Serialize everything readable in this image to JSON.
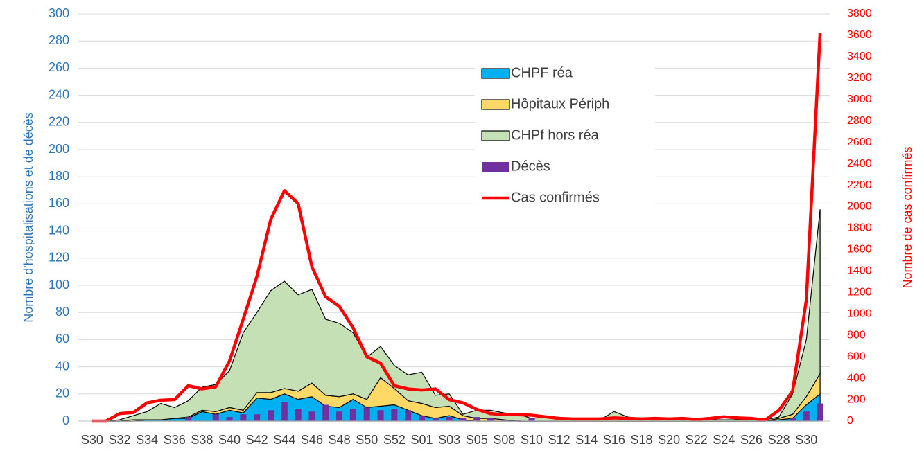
{
  "chart_data": {
    "type": "combo",
    "y_label": "Nombre d'hospitalisations et de décès",
    "y2_label": "Nombre de cas confirmés",
    "categories": [
      "S30",
      null,
      "S32",
      null,
      "S34",
      null,
      "S36",
      null,
      "S38",
      null,
      "S40",
      null,
      "S42",
      null,
      "S44",
      null,
      "S46",
      null,
      "S48",
      null,
      "S50",
      null,
      "S52",
      null,
      "S01",
      null,
      "S03",
      null,
      "S05",
      null,
      "S08",
      null,
      "S10",
      null,
      "S12",
      null,
      "S14",
      null,
      "S16",
      null,
      "S18",
      null,
      "S20",
      null,
      "S22",
      null,
      "S24",
      null,
      "S26",
      null,
      "S28",
      null,
      "S30",
      null
    ],
    "series": [
      {
        "name": "CHPF réa",
        "type": "area",
        "color": "#00b0f0",
        "values": [
          0,
          0,
          0,
          0,
          1,
          1,
          2,
          2,
          7,
          5,
          8,
          6,
          17,
          16,
          20,
          16,
          18,
          11,
          10,
          16,
          10,
          11,
          12,
          8,
          4,
          2,
          4,
          1,
          0,
          0,
          0,
          0,
          0,
          0,
          0,
          0,
          0,
          0,
          0,
          0,
          0,
          0,
          0,
          0,
          0,
          0,
          0,
          0,
          0,
          0,
          1,
          2,
          12,
          20
        ]
      },
      {
        "name": "Hôpitaux Périph",
        "type": "area",
        "color": "#ffd966",
        "values": [
          0,
          0,
          0,
          1,
          0,
          0,
          0,
          1,
          1,
          2,
          2,
          2,
          4,
          5,
          4,
          6,
          10,
          8,
          8,
          4,
          6,
          21,
          12,
          7,
          9,
          8,
          7,
          3,
          2,
          2,
          1,
          0,
          0,
          0,
          0,
          0,
          0,
          0,
          0,
          0,
          0,
          0,
          0,
          0,
          0,
          0,
          0,
          0,
          0,
          0,
          1,
          3,
          6,
          15
        ]
      },
      {
        "name": "CHPf hors réa",
        "type": "area",
        "color": "#c5e0b4",
        "values": [
          0,
          0,
          1,
          3,
          6,
          12,
          8,
          12,
          17,
          20,
          27,
          57,
          59,
          75,
          79,
          71,
          69,
          56,
          54,
          45,
          31,
          23,
          17,
          19,
          23,
          9,
          9,
          1,
          6,
          6,
          5,
          5,
          2,
          3,
          1,
          1,
          1,
          1,
          7,
          3,
          2,
          1,
          1,
          1,
          1,
          1,
          1,
          1,
          1,
          1,
          1,
          15,
          42,
          121
        ]
      },
      {
        "name": "Décès",
        "type": "bar",
        "color": "#7030a0",
        "values": [
          0,
          0,
          0,
          0,
          0,
          0,
          0,
          3,
          0,
          5,
          3,
          5,
          5,
          8,
          14,
          9,
          7,
          12,
          7,
          9,
          10,
          8,
          9,
          8,
          4,
          2,
          3,
          2,
          3,
          2,
          1,
          1,
          2,
          0,
          0,
          0,
          0,
          0,
          0,
          0,
          0,
          0,
          0,
          0,
          0,
          0,
          0,
          0,
          0,
          0,
          0,
          2,
          7,
          13
        ]
      },
      {
        "name": "Cas confirmés",
        "type": "line",
        "axis": "y2",
        "color": "#ff0000",
        "values": [
          0,
          0,
          70,
          80,
          170,
          195,
          200,
          330,
          300,
          320,
          560,
          950,
          1350,
          1880,
          2150,
          2030,
          1440,
          1160,
          1070,
          870,
          600,
          540,
          330,
          300,
          290,
          300,
          200,
          170,
          110,
          70,
          60,
          60,
          55,
          40,
          25,
          20,
          20,
          20,
          30,
          25,
          20,
          25,
          20,
          25,
          15,
          25,
          40,
          30,
          25,
          10,
          100,
          280,
          1130,
          3620
        ]
      }
    ],
    "ylim": [
      0,
      300
    ],
    "yticks": [
      0,
      20,
      40,
      60,
      80,
      100,
      120,
      140,
      160,
      180,
      200,
      220,
      240,
      260,
      280,
      300
    ],
    "y2lim": [
      0,
      3800
    ],
    "y2ticks": [
      0,
      200,
      400,
      600,
      800,
      1000,
      1200,
      1400,
      1600,
      1800,
      2000,
      2200,
      2400,
      2600,
      2800,
      3000,
      3200,
      3400,
      3600,
      3800
    ],
    "grid": true,
    "stacked": true,
    "legend": "center"
  }
}
